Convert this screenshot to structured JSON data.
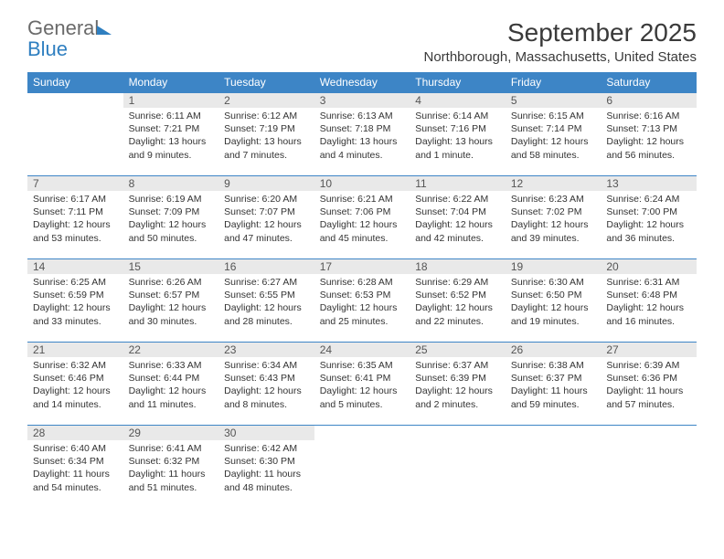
{
  "logo": {
    "text1": "General",
    "text2": "Blue"
  },
  "title": "September 2025",
  "location": "Northborough, Massachusetts, United States",
  "colors": {
    "header_bg": "#3d85c6",
    "daynum_bg": "#e9e9e9",
    "border": "#3d85c6"
  },
  "weekdays": [
    "Sunday",
    "Monday",
    "Tuesday",
    "Wednesday",
    "Thursday",
    "Friday",
    "Saturday"
  ],
  "weeks": [
    {
      "days": [
        {
          "n": "",
          "sunrise": "",
          "sunset": "",
          "daylight": ""
        },
        {
          "n": "1",
          "sunrise": "Sunrise: 6:11 AM",
          "sunset": "Sunset: 7:21 PM",
          "daylight": "Daylight: 13 hours and 9 minutes."
        },
        {
          "n": "2",
          "sunrise": "Sunrise: 6:12 AM",
          "sunset": "Sunset: 7:19 PM",
          "daylight": "Daylight: 13 hours and 7 minutes."
        },
        {
          "n": "3",
          "sunrise": "Sunrise: 6:13 AM",
          "sunset": "Sunset: 7:18 PM",
          "daylight": "Daylight: 13 hours and 4 minutes."
        },
        {
          "n": "4",
          "sunrise": "Sunrise: 6:14 AM",
          "sunset": "Sunset: 7:16 PM",
          "daylight": "Daylight: 13 hours and 1 minute."
        },
        {
          "n": "5",
          "sunrise": "Sunrise: 6:15 AM",
          "sunset": "Sunset: 7:14 PM",
          "daylight": "Daylight: 12 hours and 58 minutes."
        },
        {
          "n": "6",
          "sunrise": "Sunrise: 6:16 AM",
          "sunset": "Sunset: 7:13 PM",
          "daylight": "Daylight: 12 hours and 56 minutes."
        }
      ]
    },
    {
      "days": [
        {
          "n": "7",
          "sunrise": "Sunrise: 6:17 AM",
          "sunset": "Sunset: 7:11 PM",
          "daylight": "Daylight: 12 hours and 53 minutes."
        },
        {
          "n": "8",
          "sunrise": "Sunrise: 6:19 AM",
          "sunset": "Sunset: 7:09 PM",
          "daylight": "Daylight: 12 hours and 50 minutes."
        },
        {
          "n": "9",
          "sunrise": "Sunrise: 6:20 AM",
          "sunset": "Sunset: 7:07 PM",
          "daylight": "Daylight: 12 hours and 47 minutes."
        },
        {
          "n": "10",
          "sunrise": "Sunrise: 6:21 AM",
          "sunset": "Sunset: 7:06 PM",
          "daylight": "Daylight: 12 hours and 45 minutes."
        },
        {
          "n": "11",
          "sunrise": "Sunrise: 6:22 AM",
          "sunset": "Sunset: 7:04 PM",
          "daylight": "Daylight: 12 hours and 42 minutes."
        },
        {
          "n": "12",
          "sunrise": "Sunrise: 6:23 AM",
          "sunset": "Sunset: 7:02 PM",
          "daylight": "Daylight: 12 hours and 39 minutes."
        },
        {
          "n": "13",
          "sunrise": "Sunrise: 6:24 AM",
          "sunset": "Sunset: 7:00 PM",
          "daylight": "Daylight: 12 hours and 36 minutes."
        }
      ]
    },
    {
      "days": [
        {
          "n": "14",
          "sunrise": "Sunrise: 6:25 AM",
          "sunset": "Sunset: 6:59 PM",
          "daylight": "Daylight: 12 hours and 33 minutes."
        },
        {
          "n": "15",
          "sunrise": "Sunrise: 6:26 AM",
          "sunset": "Sunset: 6:57 PM",
          "daylight": "Daylight: 12 hours and 30 minutes."
        },
        {
          "n": "16",
          "sunrise": "Sunrise: 6:27 AM",
          "sunset": "Sunset: 6:55 PM",
          "daylight": "Daylight: 12 hours and 28 minutes."
        },
        {
          "n": "17",
          "sunrise": "Sunrise: 6:28 AM",
          "sunset": "Sunset: 6:53 PM",
          "daylight": "Daylight: 12 hours and 25 minutes."
        },
        {
          "n": "18",
          "sunrise": "Sunrise: 6:29 AM",
          "sunset": "Sunset: 6:52 PM",
          "daylight": "Daylight: 12 hours and 22 minutes."
        },
        {
          "n": "19",
          "sunrise": "Sunrise: 6:30 AM",
          "sunset": "Sunset: 6:50 PM",
          "daylight": "Daylight: 12 hours and 19 minutes."
        },
        {
          "n": "20",
          "sunrise": "Sunrise: 6:31 AM",
          "sunset": "Sunset: 6:48 PM",
          "daylight": "Daylight: 12 hours and 16 minutes."
        }
      ]
    },
    {
      "days": [
        {
          "n": "21",
          "sunrise": "Sunrise: 6:32 AM",
          "sunset": "Sunset: 6:46 PM",
          "daylight": "Daylight: 12 hours and 14 minutes."
        },
        {
          "n": "22",
          "sunrise": "Sunrise: 6:33 AM",
          "sunset": "Sunset: 6:44 PM",
          "daylight": "Daylight: 12 hours and 11 minutes."
        },
        {
          "n": "23",
          "sunrise": "Sunrise: 6:34 AM",
          "sunset": "Sunset: 6:43 PM",
          "daylight": "Daylight: 12 hours and 8 minutes."
        },
        {
          "n": "24",
          "sunrise": "Sunrise: 6:35 AM",
          "sunset": "Sunset: 6:41 PM",
          "daylight": "Daylight: 12 hours and 5 minutes."
        },
        {
          "n": "25",
          "sunrise": "Sunrise: 6:37 AM",
          "sunset": "Sunset: 6:39 PM",
          "daylight": "Daylight: 12 hours and 2 minutes."
        },
        {
          "n": "26",
          "sunrise": "Sunrise: 6:38 AM",
          "sunset": "Sunset: 6:37 PM",
          "daylight": "Daylight: 11 hours and 59 minutes."
        },
        {
          "n": "27",
          "sunrise": "Sunrise: 6:39 AM",
          "sunset": "Sunset: 6:36 PM",
          "daylight": "Daylight: 11 hours and 57 minutes."
        }
      ]
    },
    {
      "days": [
        {
          "n": "28",
          "sunrise": "Sunrise: 6:40 AM",
          "sunset": "Sunset: 6:34 PM",
          "daylight": "Daylight: 11 hours and 54 minutes."
        },
        {
          "n": "29",
          "sunrise": "Sunrise: 6:41 AM",
          "sunset": "Sunset: 6:32 PM",
          "daylight": "Daylight: 11 hours and 51 minutes."
        },
        {
          "n": "30",
          "sunrise": "Sunrise: 6:42 AM",
          "sunset": "Sunset: 6:30 PM",
          "daylight": "Daylight: 11 hours and 48 minutes."
        },
        {
          "n": "",
          "sunrise": "",
          "sunset": "",
          "daylight": ""
        },
        {
          "n": "",
          "sunrise": "",
          "sunset": "",
          "daylight": ""
        },
        {
          "n": "",
          "sunrise": "",
          "sunset": "",
          "daylight": ""
        },
        {
          "n": "",
          "sunrise": "",
          "sunset": "",
          "daylight": ""
        }
      ]
    }
  ]
}
